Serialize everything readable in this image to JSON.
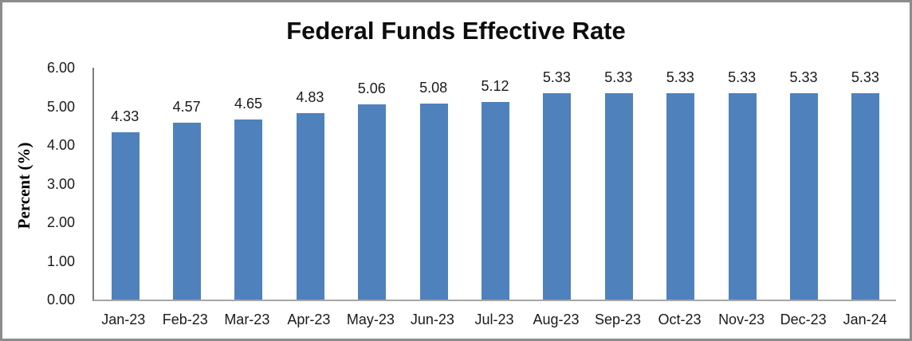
{
  "chart_data": {
    "type": "bar",
    "title": "Federal Funds Effective Rate",
    "ylabel": "Percent (%)",
    "xlabel": "",
    "categories": [
      "Jan-23",
      "Feb-23",
      "Mar-23",
      "Apr-23",
      "May-23",
      "Jun-23",
      "Jul-23",
      "Aug-23",
      "Sep-23",
      "Oct-23",
      "Nov-23",
      "Dec-23",
      "Jan-24"
    ],
    "values": [
      4.33,
      4.57,
      4.65,
      4.83,
      5.06,
      5.08,
      5.12,
      5.33,
      5.33,
      5.33,
      5.33,
      5.33,
      5.33
    ],
    "data_labels": [
      "4.33",
      "4.57",
      "4.65",
      "4.83",
      "5.06",
      "5.08",
      "5.12",
      "5.33",
      "5.33",
      "5.33",
      "5.33",
      "5.33",
      "5.33"
    ],
    "ylim": [
      0,
      6
    ],
    "ytick_values": [
      0,
      1,
      2,
      3,
      4,
      5,
      6
    ],
    "ytick_labels": [
      "0.00",
      "1.00",
      "2.00",
      "3.00",
      "4.00",
      "5.00",
      "6.00"
    ],
    "grid": false,
    "legend": false,
    "bar_color": "#4F81BD"
  },
  "colors": {
    "bar": "#4F81BD",
    "frame_border": "#8C8C8C",
    "y_axis_line": "#7F7F7F",
    "x_axis_line": "#A6A6A6",
    "text": "#1A1A1A"
  }
}
